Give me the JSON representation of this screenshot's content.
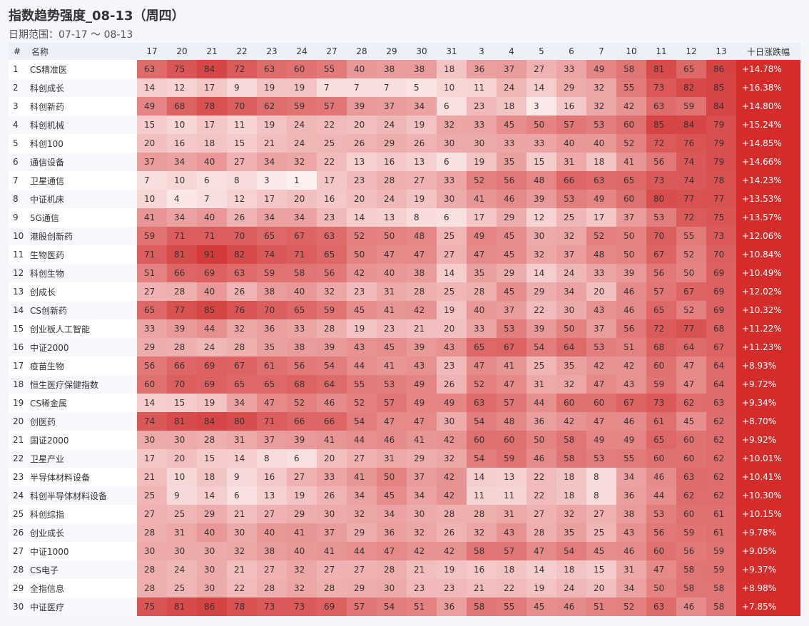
{
  "title": "指数趋势强度_08-13（周四）",
  "subtitle": "日期范围：07-17 ～ 08-13",
  "colors": {
    "low": "#fdf0f0",
    "high": "#d43a3a",
    "change_bg": "#d52b2b"
  },
  "chart_data": {
    "type": "heatmap",
    "index_header": "#",
    "name_header": "名称",
    "change_header": "十日涨跌幅",
    "value_range": [
      1,
      91
    ],
    "columns": [
      "17",
      "20",
      "21",
      "22",
      "23",
      "24",
      "27",
      "28",
      "29",
      "30",
      "31",
      "3",
      "4",
      "5",
      "6",
      "7",
      "10",
      "11",
      "12",
      "13"
    ],
    "rows": [
      {
        "rank": "1",
        "name": "CS精准医",
        "values": [
          63,
          75,
          84,
          72,
          63,
          60,
          55,
          40,
          38,
          38,
          18,
          36,
          37,
          27,
          33,
          49,
          58,
          81,
          65,
          86
        ],
        "change": "+14.78%"
      },
      {
        "rank": "2",
        "name": "科创成长",
        "values": [
          14,
          12,
          17,
          9,
          19,
          19,
          7,
          7,
          7,
          5,
          10,
          11,
          24,
          14,
          29,
          32,
          55,
          73,
          82,
          85
        ],
        "change": "+16.38%"
      },
      {
        "rank": "3",
        "name": "科创新药",
        "values": [
          49,
          68,
          78,
          70,
          62,
          59,
          57,
          39,
          37,
          34,
          6,
          23,
          18,
          3,
          16,
          32,
          42,
          63,
          59,
          84
        ],
        "change": "+14.80%"
      },
      {
        "rank": "4",
        "name": "科创机械",
        "values": [
          15,
          10,
          17,
          11,
          19,
          24,
          22,
          20,
          24,
          19,
          32,
          33,
          45,
          50,
          57,
          53,
          60,
          85,
          84,
          79
        ],
        "change": "+15.24%"
      },
      {
        "rank": "5",
        "name": "科创100",
        "values": [
          20,
          16,
          18,
          15,
          21,
          24,
          25,
          26,
          29,
          26,
          30,
          30,
          33,
          33,
          40,
          40,
          52,
          72,
          76,
          79
        ],
        "change": "+14.85%"
      },
      {
        "rank": "6",
        "name": "通信设备",
        "values": [
          37,
          34,
          40,
          27,
          34,
          32,
          22,
          13,
          16,
          13,
          6,
          19,
          35,
          15,
          31,
          18,
          41,
          56,
          74,
          79
        ],
        "change": "+14.66%"
      },
      {
        "rank": "7",
        "name": "卫星通信",
        "values": [
          7,
          10,
          6,
          8,
          3,
          1,
          17,
          23,
          28,
          27,
          33,
          52,
          56,
          48,
          66,
          63,
          65,
          73,
          74,
          78
        ],
        "change": "+14.23%"
      },
      {
        "rank": "8",
        "name": "中证机床",
        "values": [
          10,
          4,
          7,
          12,
          17,
          20,
          16,
          20,
          24,
          19,
          30,
          41,
          46,
          39,
          53,
          49,
          60,
          80,
          77,
          77
        ],
        "change": "+13.53%"
      },
      {
        "rank": "9",
        "name": "5G通信",
        "values": [
          41,
          34,
          40,
          26,
          34,
          34,
          23,
          14,
          13,
          8,
          6,
          17,
          29,
          12,
          25,
          17,
          37,
          53,
          72,
          75
        ],
        "change": "+13.57%"
      },
      {
        "rank": "10",
        "name": "港股创新药",
        "values": [
          59,
          71,
          71,
          70,
          65,
          67,
          63,
          52,
          50,
          48,
          25,
          49,
          45,
          30,
          32,
          52,
          50,
          70,
          55,
          73
        ],
        "change": "+12.06%"
      },
      {
        "rank": "11",
        "name": "生物医药",
        "values": [
          71,
          81,
          91,
          82,
          74,
          71,
          65,
          50,
          47,
          47,
          27,
          47,
          45,
          32,
          37,
          48,
          50,
          67,
          52,
          70
        ],
        "change": "+10.84%"
      },
      {
        "rank": "12",
        "name": "科创生物",
        "values": [
          51,
          66,
          69,
          63,
          59,
          58,
          56,
          42,
          40,
          38,
          14,
          35,
          29,
          14,
          24,
          33,
          39,
          56,
          50,
          69
        ],
        "change": "+10.49%"
      },
      {
        "rank": "13",
        "name": "创成长",
        "values": [
          27,
          28,
          40,
          26,
          38,
          40,
          32,
          23,
          31,
          28,
          25,
          28,
          45,
          29,
          34,
          20,
          46,
          57,
          67,
          69
        ],
        "change": "+12.02%"
      },
      {
        "rank": "14",
        "name": "CS创新药",
        "values": [
          65,
          77,
          85,
          76,
          70,
          65,
          59,
          45,
          41,
          42,
          19,
          40,
          37,
          22,
          30,
          43,
          46,
          65,
          52,
          69
        ],
        "change": "+10.32%"
      },
      {
        "rank": "15",
        "name": "创业板人工智能",
        "values": [
          33,
          39,
          44,
          32,
          36,
          33,
          28,
          19,
          23,
          21,
          20,
          33,
          53,
          39,
          50,
          37,
          56,
          72,
          77,
          68
        ],
        "change": "+11.22%"
      },
      {
        "rank": "16",
        "name": "中证2000",
        "values": [
          29,
          28,
          24,
          28,
          35,
          38,
          39,
          43,
          45,
          39,
          43,
          65,
          67,
          54,
          64,
          53,
          51,
          68,
          64,
          67
        ],
        "change": "+11.23%"
      },
      {
        "rank": "17",
        "name": "疫苗生物",
        "values": [
          56,
          66,
          69,
          67,
          61,
          56,
          54,
          44,
          41,
          43,
          23,
          47,
          41,
          25,
          35,
          42,
          42,
          60,
          47,
          64
        ],
        "change": "+8.93%"
      },
      {
        "rank": "18",
        "name": "恒生医疗保健指数",
        "values": [
          60,
          70,
          69,
          65,
          65,
          68,
          64,
          55,
          53,
          49,
          26,
          52,
          47,
          31,
          32,
          47,
          43,
          59,
          47,
          64
        ],
        "change": "+9.72%"
      },
      {
        "rank": "19",
        "name": "CS稀金属",
        "values": [
          14,
          15,
          19,
          34,
          47,
          52,
          46,
          52,
          57,
          49,
          49,
          63,
          57,
          44,
          60,
          60,
          67,
          73,
          62,
          63
        ],
        "change": "+9.34%"
      },
      {
        "rank": "20",
        "name": "创医药",
        "values": [
          74,
          81,
          84,
          80,
          71,
          66,
          66,
          54,
          47,
          47,
          30,
          54,
          48,
          36,
          42,
          47,
          46,
          61,
          45,
          62
        ],
        "change": "+8.70%"
      },
      {
        "rank": "21",
        "name": "国证2000",
        "values": [
          30,
          30,
          28,
          31,
          37,
          39,
          41,
          44,
          46,
          41,
          42,
          60,
          60,
          50,
          58,
          49,
          49,
          65,
          60,
          62
        ],
        "change": "+9.92%"
      },
      {
        "rank": "22",
        "name": "卫星产业",
        "values": [
          17,
          20,
          15,
          14,
          8,
          6,
          20,
          27,
          31,
          29,
          32,
          54,
          59,
          46,
          58,
          53,
          55,
          60,
          60,
          62
        ],
        "change": "+10.01%"
      },
      {
        "rank": "23",
        "name": "半导体材料设备",
        "values": [
          21,
          10,
          18,
          9,
          16,
          27,
          33,
          41,
          50,
          37,
          42,
          14,
          13,
          22,
          18,
          8,
          34,
          46,
          63,
          62
        ],
        "change": "+10.41%"
      },
      {
        "rank": "24",
        "name": "科创半导体材料设备",
        "values": [
          25,
          9,
          14,
          6,
          13,
          19,
          26,
          34,
          45,
          34,
          42,
          11,
          11,
          22,
          18,
          8,
          36,
          44,
          62,
          62
        ],
        "change": "+10.30%"
      },
      {
        "rank": "25",
        "name": "科创综指",
        "values": [
          27,
          25,
          29,
          21,
          27,
          29,
          30,
          32,
          34,
          30,
          28,
          28,
          31,
          27,
          32,
          27,
          38,
          53,
          60,
          61
        ],
        "change": "+10.15%"
      },
      {
        "rank": "26",
        "name": "创业成长",
        "values": [
          28,
          31,
          40,
          30,
          40,
          41,
          37,
          29,
          36,
          32,
          26,
          32,
          43,
          28,
          35,
          25,
          43,
          56,
          59,
          61
        ],
        "change": "+9.78%"
      },
      {
        "rank": "27",
        "name": "中证1000",
        "values": [
          30,
          30,
          30,
          32,
          38,
          40,
          41,
          44,
          47,
          42,
          42,
          58,
          57,
          47,
          54,
          45,
          46,
          60,
          56,
          59
        ],
        "change": "+9.05%"
      },
      {
        "rank": "28",
        "name": "CS电子",
        "values": [
          28,
          24,
          30,
          21,
          27,
          32,
          27,
          27,
          28,
          21,
          19,
          16,
          18,
          14,
          18,
          15,
          31,
          47,
          58,
          59
        ],
        "change": "+9.37%"
      },
      {
        "rank": "29",
        "name": "全指信息",
        "values": [
          28,
          25,
          30,
          22,
          28,
          32,
          28,
          29,
          30,
          23,
          23,
          21,
          22,
          19,
          24,
          20,
          34,
          50,
          58,
          58
        ],
        "change": "+8.98%"
      },
      {
        "rank": "30",
        "name": "中证医疗",
        "values": [
          75,
          81,
          86,
          78,
          73,
          73,
          69,
          57,
          54,
          51,
          36,
          58,
          55,
          45,
          46,
          51,
          52,
          63,
          46,
          58
        ],
        "change": "+7.85%"
      }
    ]
  }
}
